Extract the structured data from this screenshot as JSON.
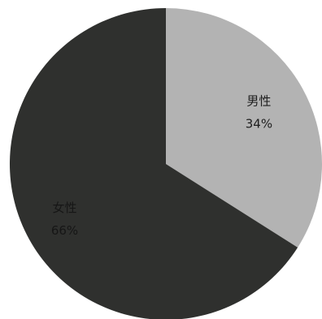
{
  "chart_data": {
    "type": "pie",
    "categories": [
      "男性",
      "女性"
    ],
    "values": [
      34,
      66
    ],
    "value_labels": [
      "34%",
      "66%"
    ],
    "colors": [
      "#b3b3b3",
      "#2f302e"
    ],
    "label_colors": [
      "#1e1e1e",
      "#161616"
    ]
  }
}
